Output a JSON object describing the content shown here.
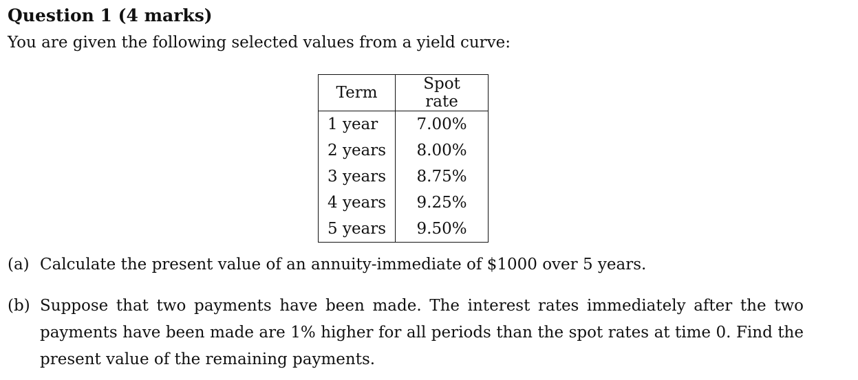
{
  "heading": {
    "title": "Question 1",
    "marks": "(4 marks)"
  },
  "intro": "You are given the following selected values from a yield curve:",
  "table": {
    "headers": [
      "Term",
      "Spot rate"
    ],
    "rows": [
      [
        "1 year",
        "7.00%"
      ],
      [
        "2 years",
        "8.00%"
      ],
      [
        "3 years",
        "8.75%"
      ],
      [
        "4 years",
        "9.25%"
      ],
      [
        "5 years",
        "9.50%"
      ]
    ]
  },
  "parts": [
    {
      "label": "(a)",
      "text": "Calculate the present value of an annuity-immediate of $1000 over 5 years."
    },
    {
      "label": "(b)",
      "text": "Suppose that two payments have been made. The interest rates immediately after the two payments have been made are 1% higher for all periods than the spot rates at time 0. Find the present value of the remaining payments."
    }
  ]
}
